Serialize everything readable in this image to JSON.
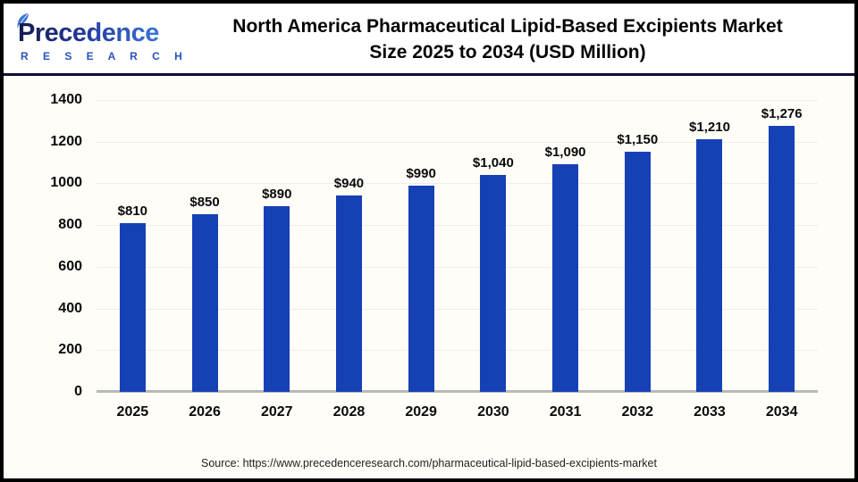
{
  "header": {
    "logo": {
      "brand": "Precedence",
      "subtitle": "R E S E A R C H"
    }
  },
  "chart_data": {
    "type": "bar",
    "title": "North America Pharmaceutical Lipid-Based Excipients Market Size 2025 to 2034 (USD Million)",
    "title_lines": [
      "North America Pharmaceutical Lipid-Based Excipients Market",
      "Size 2025 to 2034 (USD Million)"
    ],
    "unit": "USD Million",
    "categories": [
      "2025",
      "2026",
      "2027",
      "2028",
      "2029",
      "2030",
      "2031",
      "2032",
      "2033",
      "2034"
    ],
    "values": [
      810,
      850,
      890,
      940,
      990,
      1040,
      1090,
      1150,
      1210,
      1276
    ],
    "value_labels": [
      "$810",
      "$850",
      "$890",
      "$940",
      "$990",
      "$1,040",
      "$1,090",
      "$1,150",
      "$1,210",
      "$1,276"
    ],
    "xlabel": "",
    "ylabel": "",
    "ylim": [
      0,
      1400
    ],
    "yticks": [
      0,
      200,
      400,
      600,
      800,
      1000,
      1200,
      1400
    ],
    "grid": true,
    "legend": "none",
    "bar_color": "#1641b5"
  },
  "footer": {
    "source": "Source: https://www.precedenceresearch.com/pharmaceutical-lipid-based-excipients-market"
  },
  "colors": {
    "bar": "#1641b5",
    "divider": "#0c0f38",
    "gridline": "#ededed",
    "baseline": "#b8b8b8",
    "logo_navy": "#151b4e",
    "logo_blue": "#3b74d8",
    "title_text": "#050505",
    "source_text": "#1f1f1f"
  }
}
